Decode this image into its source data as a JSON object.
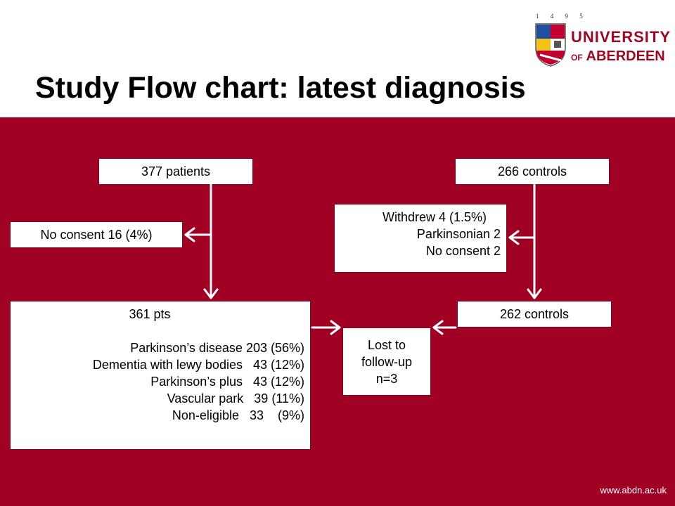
{
  "header": {
    "title": "Study Flow chart: latest diagnosis",
    "logo": {
      "years": "1 4 9 5",
      "line1": "UNIVERSITY",
      "line2_prefix": "OF",
      "line2": "ABERDEEN"
    }
  },
  "flow": {
    "patients": "377 patients",
    "controls": "266 controls",
    "no_consent": "No consent 16 (4%)",
    "withdrew": [
      "Withdrew 4 (1.5%)",
      "Parkinsonian 2",
      "No consent 2"
    ],
    "pts_title": "361 pts",
    "pts_lines": [
      "Parkinson’s disease 203 (56%)",
      "Dementia with lewy bodies   43 (12%)",
      "Parkinson’s plus   43 (12%)",
      "Vascular park   39 (11%)",
      "Non-eligible   33    (9%)"
    ],
    "controls_262": "262 controls",
    "lost": [
      "Lost to",
      "follow-up",
      "n=3"
    ]
  },
  "footer": {
    "url": "www.abdn.ac.uk"
  },
  "colors": {
    "brand": "#a10025",
    "panel": "#a10025"
  }
}
